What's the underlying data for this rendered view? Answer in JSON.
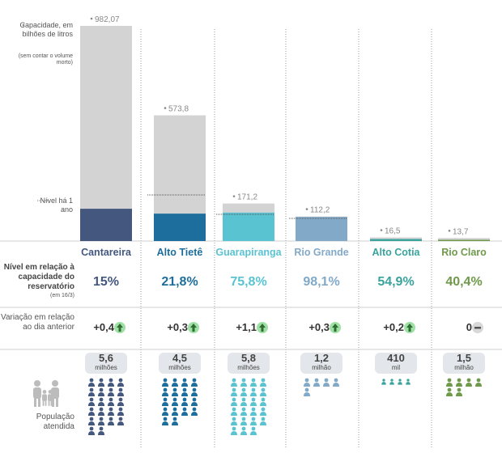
{
  "chart_data": {
    "type": "bar",
    "categories": [
      "Cantareira",
      "Alto Tietê",
      "Guarapiranga",
      "Rio Grande",
      "Alto Cotia",
      "Rio Claro"
    ],
    "capacity": {
      "values": [
        982.07,
        573.8,
        171.2,
        112.2,
        16.5,
        13.7
      ],
      "labels": [
        "982,07",
        "573,8",
        "171,2",
        "112,2",
        "16,5",
        "13,7"
      ]
    },
    "level_pct": {
      "values": [
        15,
        21.8,
        75.8,
        98.1,
        54.9,
        40.4
      ],
      "labels": [
        "15%",
        "21,8%",
        "75,8%",
        "98,1%",
        "54,9%",
        "40,4%"
      ]
    },
    "variation": {
      "values": [
        0.4,
        0.3,
        1.1,
        0.3,
        0.2,
        0
      ],
      "labels": [
        "+0,4",
        "+0,3",
        "+1,1",
        "+0,3",
        "+0,2",
        "0"
      ],
      "direction": [
        "up",
        "up",
        "up",
        "up",
        "up",
        "none"
      ]
    },
    "population": {
      "numbers": [
        "5,6",
        "4,5",
        "5,8",
        "1,2",
        "410",
        "1,5"
      ],
      "units": [
        "milhões",
        "milhões",
        "milhões",
        "milhão",
        "mil",
        "milhão"
      ],
      "values_millions": [
        5.6,
        4.5,
        5.8,
        1.2,
        0.41,
        1.5
      ]
    },
    "colors": [
      "#43577f",
      "#1d6e9c",
      "#5ac3d2",
      "#82a9c8",
      "#3aa39d",
      "#6f9a4c"
    ],
    "capacity_color": "#d3d3d3",
    "ylim": [
      0,
      982.07
    ]
  },
  "legend": {
    "capacity": "Capacidade, em bilhões de litros",
    "capacity_note": "(sem contar o volume morto)",
    "level_1y": "Nível há 1 ano"
  },
  "row_labels": {
    "level": "Nível em relação à capacidade do reservatório",
    "level_date": "(em 16/3)",
    "variation": "Variação em relação ao dia anterior",
    "population": "População atendida"
  },
  "icons": {
    "up": "arrow-up-icon",
    "none": "minus-icon",
    "person": "person-icon",
    "family": "family-icon"
  }
}
